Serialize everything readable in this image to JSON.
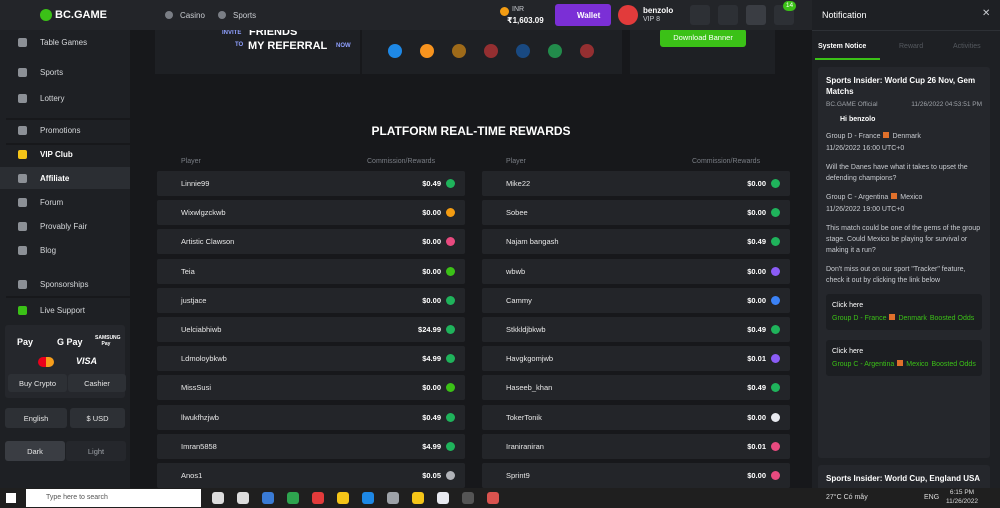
{
  "header": {
    "logo": "BC.GAME",
    "nav": [
      "Casino",
      "Sports"
    ],
    "currency": "INR",
    "balance": "₹1,603.09",
    "wallet": "Wallet",
    "username": "benzolo",
    "vip": "VIP 8",
    "chat_badge": "14"
  },
  "sidebar": {
    "menu": [
      "Table Games",
      "Sports",
      "Lottery",
      "Promotions",
      "VIP Club",
      "Affiliate",
      "Forum",
      "Provably Fair",
      "Blog",
      "Sponsorships",
      "Live Support"
    ],
    "payments": [
      "Pay",
      "G Pay",
      "SAMSUNG Pay",
      "VISA"
    ],
    "buttons": [
      "Buy Crypto",
      "Cashier"
    ],
    "language": "English",
    "currency": "$ USD",
    "themes": [
      "Dark",
      "Light"
    ]
  },
  "banner": {
    "lines": [
      "INVITE",
      "FRIENDS",
      "TO",
      "MY REFERRAL",
      "NOW"
    ],
    "download": "Download Banner"
  },
  "rewards": {
    "title": "PLATFORM REAL-TIME REWARDS",
    "columns": [
      "Player",
      "Commission/Rewards"
    ],
    "left": [
      {
        "player": "Linnie99",
        "amount": "$0.49",
        "coin": "#1fb35b"
      },
      {
        "player": "Wixwlgzckwb",
        "amount": "$0.00",
        "coin": "#f39c12"
      },
      {
        "player": "Artistic Clawson",
        "amount": "$0.00",
        "coin": "#e84a7f"
      },
      {
        "player": "Teia",
        "amount": "$0.00",
        "coin": "#3bc117"
      },
      {
        "player": "justjace",
        "amount": "$0.00",
        "coin": "#1fb35b"
      },
      {
        "player": "Uelciabhiwb",
        "amount": "$24.99",
        "coin": "#1fb35b"
      },
      {
        "player": "Ldmoloybkwb",
        "amount": "$4.99",
        "coin": "#1fb35b"
      },
      {
        "player": "MissSusi",
        "amount": "$0.00",
        "coin": "#3bc117"
      },
      {
        "player": "llwukfhzjwb",
        "amount": "$0.49",
        "coin": "#1fb35b"
      },
      {
        "player": "Imran5858",
        "amount": "$4.99",
        "coin": "#1fb35b"
      },
      {
        "player": "Anos1",
        "amount": "$0.05",
        "coin": "#b0b3b8"
      }
    ],
    "right": [
      {
        "player": "Mike22",
        "amount": "$0.00",
        "coin": "#1fb35b"
      },
      {
        "player": "Sobee",
        "amount": "$0.00",
        "coin": "#1fb35b"
      },
      {
        "player": "Najam bangash",
        "amount": "$0.49",
        "coin": "#1fb35b"
      },
      {
        "player": "wbwb",
        "amount": "$0.00",
        "coin": "#8b5cf6"
      },
      {
        "player": "Cammy",
        "amount": "$0.00",
        "coin": "#3b82f6"
      },
      {
        "player": "Stkkldjbkwb",
        "amount": "$0.49",
        "coin": "#1fb35b"
      },
      {
        "player": "Havgkgomjwb",
        "amount": "$0.01",
        "coin": "#8b5cf6"
      },
      {
        "player": "Haseeb_khan",
        "amount": "$0.49",
        "coin": "#1fb35b"
      },
      {
        "player": "TokerTonik",
        "amount": "$0.00",
        "coin": "#e8eaf0"
      },
      {
        "player": "Iraniraniran",
        "amount": "$0.01",
        "coin": "#e84a7f"
      },
      {
        "player": "Sprint9",
        "amount": "$0.00",
        "coin": "#e84a7f"
      }
    ]
  },
  "notification": {
    "title": "Notification",
    "tabs": [
      "System Notice",
      "Reward",
      "Activities"
    ],
    "card": {
      "title": "Sports Insider: World Cup 26 Nov, Gem Matchs",
      "author": "BC.GAME Official",
      "time": "11/26/2022 04:53:51 PM",
      "greeting": "Hi benzolo",
      "paragraphs": [
        [
          "Group D - France",
          "Denmark"
        ],
        [
          "11/26/2022 16:00 UTC+0"
        ],
        [
          "Will the Danes have what it takes to upset the defending champions?"
        ],
        [
          "Group C - Argentina",
          "Mexico"
        ],
        [
          "11/26/2022 19:00 UTC+0"
        ],
        [
          "This match could be one of the gems of the group stage. Could Mexico be playing for survival or making it a run?"
        ],
        [
          "Don't miss out on our sport \"Tracker\" feature, check it out by clicking the link below"
        ]
      ],
      "links": [
        {
          "label": "Click here",
          "group": "Group D - France",
          "team": "Denmark",
          "odds": "Boosted Odds"
        },
        {
          "label": "Click here",
          "group": "Group C - Argentina",
          "team": "Mexico",
          "odds": "Boosted Odds"
        }
      ]
    },
    "next_card": "Sports Insider: World Cup, England USA"
  },
  "taskbar": {
    "search": "Type here to search",
    "weather": "27°C Có mây",
    "lang": "ENG",
    "time": "6:15 PM",
    "date": "11/26/2022"
  }
}
